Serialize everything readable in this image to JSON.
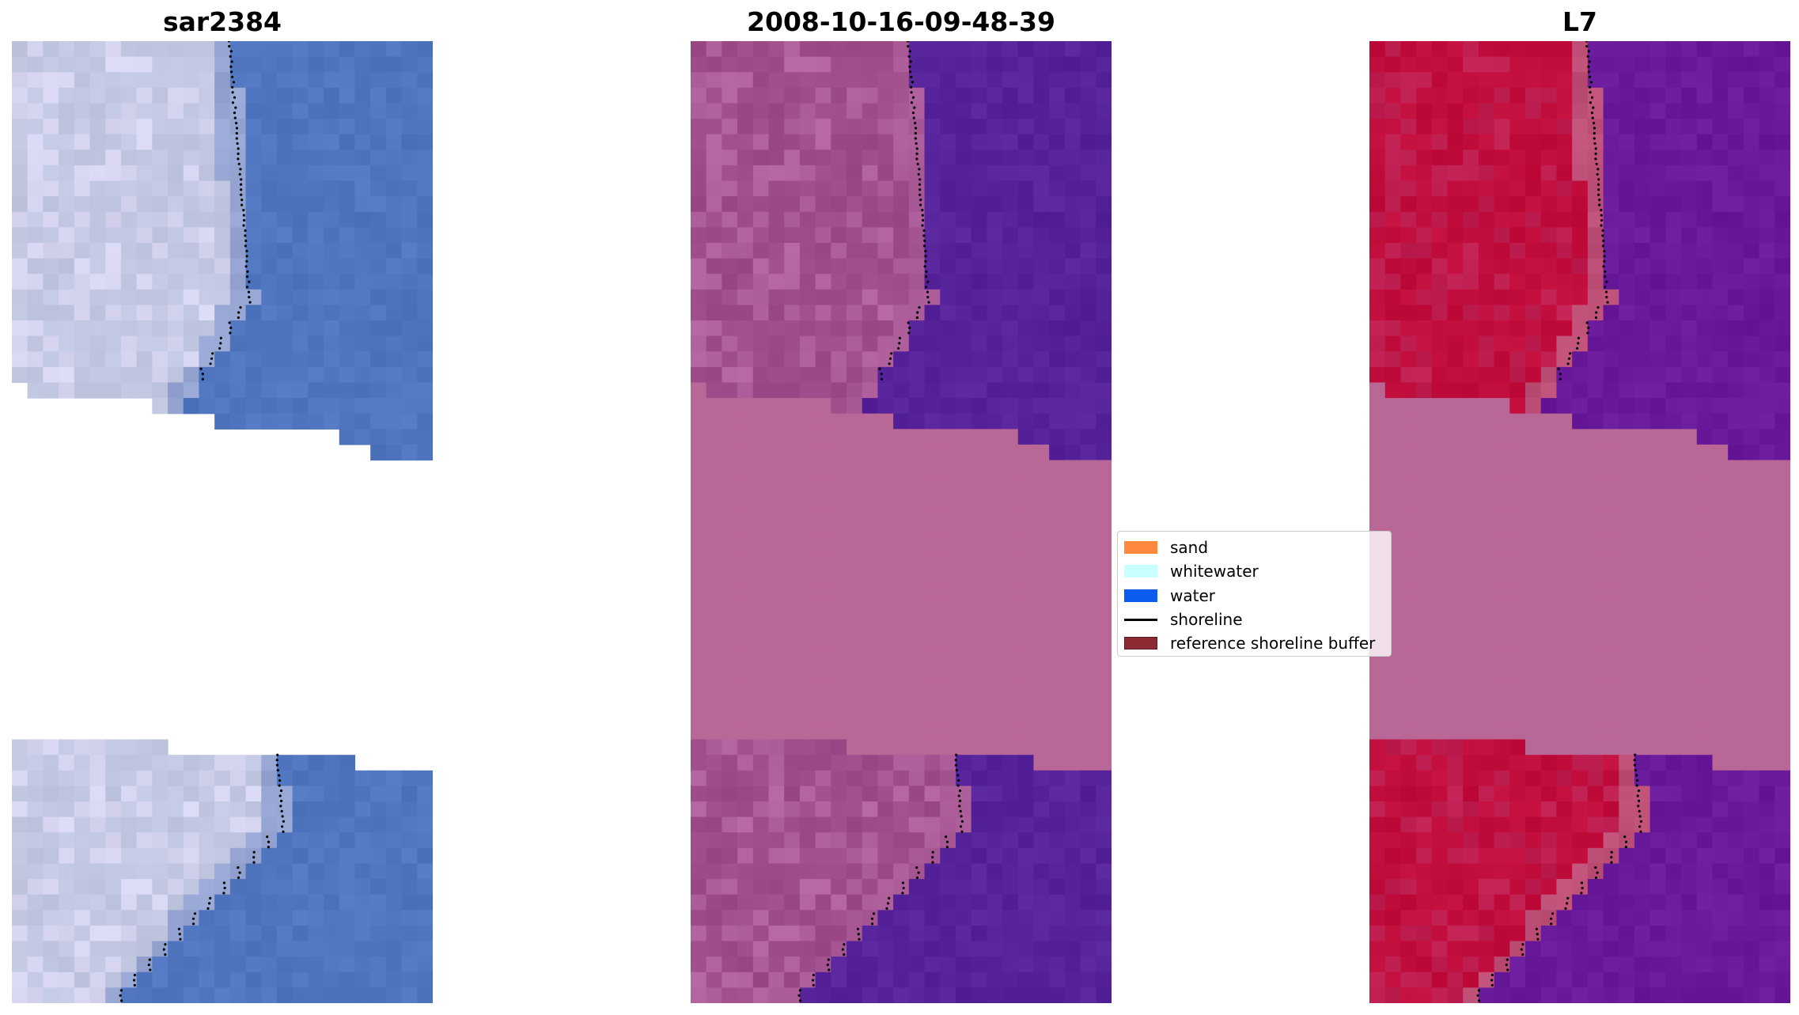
{
  "chart_data": [
    {
      "type": "heatmap",
      "title": "sar2384",
      "description_colors": {
        "land": "#c3c9e4",
        "water": "#4f76bf"
      }
    },
    {
      "type": "heatmap",
      "title": "2008-10-16-09-48-39",
      "description_colors": {
        "land": "#a14e8c",
        "water": "#56239a",
        "nodata": "#b96796"
      }
    },
    {
      "type": "heatmap",
      "title": "L7",
      "description_colors": {
        "land": "#c3113f",
        "water": "#6a1b9a",
        "nodata": "#b96796"
      }
    }
  ],
  "legend": {
    "items": [
      {
        "label": "sand",
        "kind": "patch",
        "color": "#ff8a3d"
      },
      {
        "label": "whitewater",
        "kind": "patch",
        "color": "#c8ffff"
      },
      {
        "label": "water",
        "kind": "patch",
        "color": "#0a5bf0"
      },
      {
        "label": "shoreline",
        "kind": "line",
        "color": "#000000"
      },
      {
        "label": "reference shoreline buffer",
        "kind": "patch",
        "color": "#8b2a33"
      }
    ]
  }
}
